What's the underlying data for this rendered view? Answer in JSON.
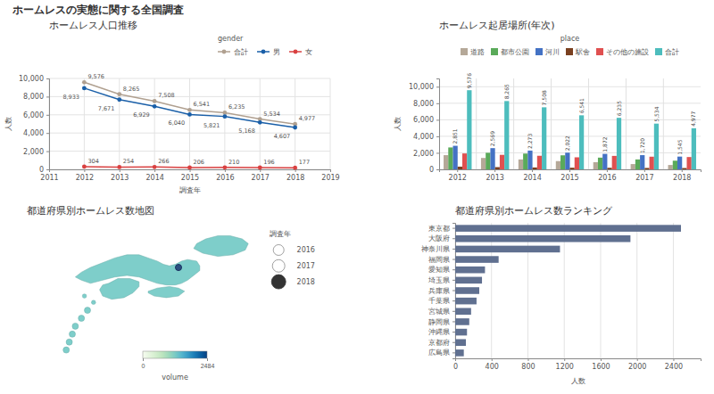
{
  "title": "ホームレスの実態に関する全国調査",
  "chart_data": [
    {
      "type": "line",
      "title": "ホームレス人口推移",
      "xlabel": "調査年",
      "ylabel": "人数",
      "legend_title": "gender",
      "x": [
        2012,
        2013,
        2014,
        2015,
        2016,
        2017,
        2018
      ],
      "series": [
        {
          "name": "合計",
          "color": "#b0a090",
          "marker": "circle",
          "values": [
            9576,
            8265,
            7508,
            6541,
            6235,
            5534,
            4977
          ],
          "value_labels": [
            "9,576",
            "8,265",
            "7,508",
            "6,541",
            "6,235",
            "5,534",
            "4,977"
          ]
        },
        {
          "name": "男",
          "color": "#1a5fa8",
          "marker": "circle",
          "values": [
            8933,
            7671,
            6929,
            6040,
            5821,
            5168,
            4607
          ],
          "value_labels": [
            "8,933",
            "7,671",
            "6,929",
            "6,040",
            "5,821",
            "5,168",
            "4,607"
          ]
        },
        {
          "name": "女",
          "color": "#d94040",
          "marker": "circle",
          "values": [
            304,
            254,
            266,
            206,
            210,
            196,
            177
          ]
        }
      ],
      "data_labels": true,
      "xlim": [
        2011,
        2019
      ],
      "xticks": [
        2011,
        2012,
        2013,
        2014,
        2015,
        2016,
        2017,
        2018,
        2019
      ],
      "ylim": [
        0,
        10000
      ],
      "yticks": [
        0,
        {
          "value": 2000,
          "label": "2,000"
        },
        {
          "value": 4000,
          "label": "4,000"
        },
        {
          "value": 6000,
          "label": "6,000"
        },
        {
          "value": 8000,
          "label": "8,000"
        },
        {
          "value": 10000,
          "label": "10,000"
        }
      ],
      "grid": true
    },
    {
      "type": "bar",
      "title": "ホームレス起居場所(年次)",
      "ylabel": "人数",
      "legend_title": "place",
      "categories": [
        "2012",
        "2013",
        "2014",
        "2015",
        "2016",
        "2017",
        "2018"
      ],
      "series": [
        {
          "name": "道路",
          "color": "#b5a898",
          "values": [
            1720,
            1380,
            1200,
            1000,
            870,
            640,
            530
          ]
        },
        {
          "name": "都市公園",
          "color": "#5aaa5a",
          "values": [
            2651,
            2009,
            1910,
            1700,
            1420,
            1200,
            1050
          ]
        },
        {
          "name": "河川",
          "color": "#4472c4",
          "values": [
            2851,
            2569,
            2273,
            2022,
            1872,
            1720,
            1545
          ],
          "data_labels": true,
          "value_labels": [
            "2,851",
            "2,569",
            "2,273",
            "2,022",
            "1,872",
            "1,720",
            "1,545"
          ]
        },
        {
          "name": "駅舎",
          "color": "#7a4020",
          "values": [
            330,
            270,
            230,
            200,
            190,
            170,
            160
          ]
        },
        {
          "name": "その他の施設",
          "color": "#e05050",
          "values": [
            1924,
            1757,
            1645,
            1459,
            1631,
            1534,
            1492
          ]
        },
        {
          "name": "合計",
          "color": "#4dbdbd",
          "values": [
            9576,
            8265,
            7508,
            6541,
            6235,
            5534,
            4977
          ],
          "data_labels": true,
          "value_labels": [
            "9,576",
            "8,265",
            "7,508",
            "6,541",
            "6,235",
            "5,534",
            "4,977"
          ]
        }
      ],
      "ylim": [
        0,
        11000
      ],
      "yticks": [
        0,
        {
          "value": 2000,
          "label": "2,000"
        },
        {
          "value": 4000,
          "label": "4,000"
        },
        {
          "value": 6000,
          "label": "6,000"
        },
        {
          "value": 8000,
          "label": "8,000"
        },
        {
          "value": 10000,
          "label": "10,000"
        }
      ],
      "grid": true
    },
    {
      "type": "map",
      "title": "都道府県別ホームレス数地図",
      "legend_title": "調査年",
      "categories": [
        "2016",
        "2017",
        "2018"
      ],
      "color": "#7ececa",
      "colorbar_label": "volume",
      "colorbar_range": [
        0,
        2484
      ],
      "colorbar_ticks": [
        0,
        2484
      ]
    },
    {
      "type": "bar",
      "orientation": "horizontal",
      "title": "都道府県別ホームレス数ランキング",
      "xlabel": "人数",
      "categories": [
        "東京都",
        "大阪府",
        "神奈川県",
        "福岡県",
        "愛知県",
        "埼玉県",
        "兵庫県",
        "千葉県",
        "宮城県",
        "静岡県",
        "沖縄県",
        "京都府",
        "広島県"
      ],
      "values": [
        2484,
        1928,
        1153,
        478,
        328,
        295,
        265,
        235,
        175,
        155,
        130,
        118,
        95
      ],
      "color": "#607090",
      "xlim": [
        0,
        2700
      ],
      "xticks": [
        0,
        400,
        800,
        1200,
        1600,
        2000,
        2400
      ],
      "grid": true
    }
  ]
}
